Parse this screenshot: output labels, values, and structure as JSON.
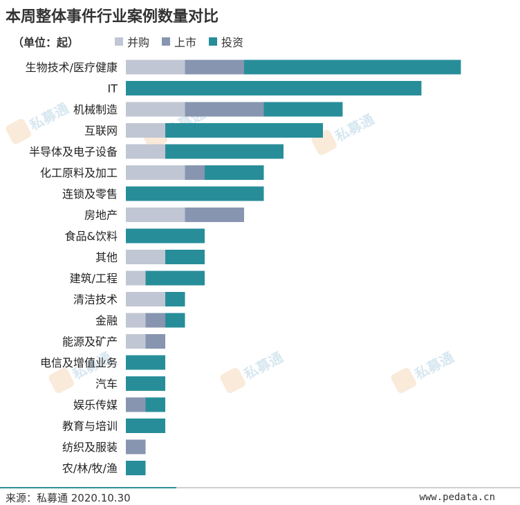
{
  "title": "本周整体事件行业案例数量对比",
  "unit": "（单位：起）",
  "legend": [
    {
      "label": "并购",
      "color": "#c0c6d3"
    },
    {
      "label": "上市",
      "color": "#8795b0"
    },
    {
      "label": "投资",
      "color": "#278e99"
    }
  ],
  "chart_data": {
    "type": "bar",
    "orientation": "horizontal",
    "stacked": true,
    "categories": [
      "生物技术/医疗健康",
      "IT",
      "机械制造",
      "互联网",
      "半导体及电子设备",
      "化工原料及加工",
      "连锁及零售",
      "房地产",
      "食品&饮料",
      "其他",
      "建筑/工程",
      "清洁技术",
      "金融",
      "能源及矿产",
      "电信及增值业务",
      "汽车",
      "娱乐传媒",
      "教育与培训",
      "纺织及服装",
      "农/林/牧/渔"
    ],
    "series": [
      {
        "name": "并购",
        "values": [
          3,
          0,
          3,
          2,
          2,
          3,
          0,
          3,
          0,
          2,
          1,
          2,
          1,
          1,
          0,
          0,
          0,
          0,
          0,
          0
        ]
      },
      {
        "name": "上市",
        "values": [
          3,
          0,
          4,
          0,
          0,
          1,
          0,
          3,
          0,
          0,
          0,
          0,
          1,
          1,
          0,
          0,
          1,
          0,
          1,
          0
        ]
      },
      {
        "name": "投资",
        "values": [
          11,
          15,
          4,
          8,
          6,
          3,
          7,
          0,
          4,
          2,
          3,
          1,
          1,
          0,
          2,
          2,
          1,
          2,
          0,
          1
        ]
      }
    ],
    "legend_position": "top",
    "grid": false
  },
  "watermark": "私募通",
  "footer": {
    "source": "来源：私募通 2020.10.30",
    "site": "www.pedata.cn"
  }
}
